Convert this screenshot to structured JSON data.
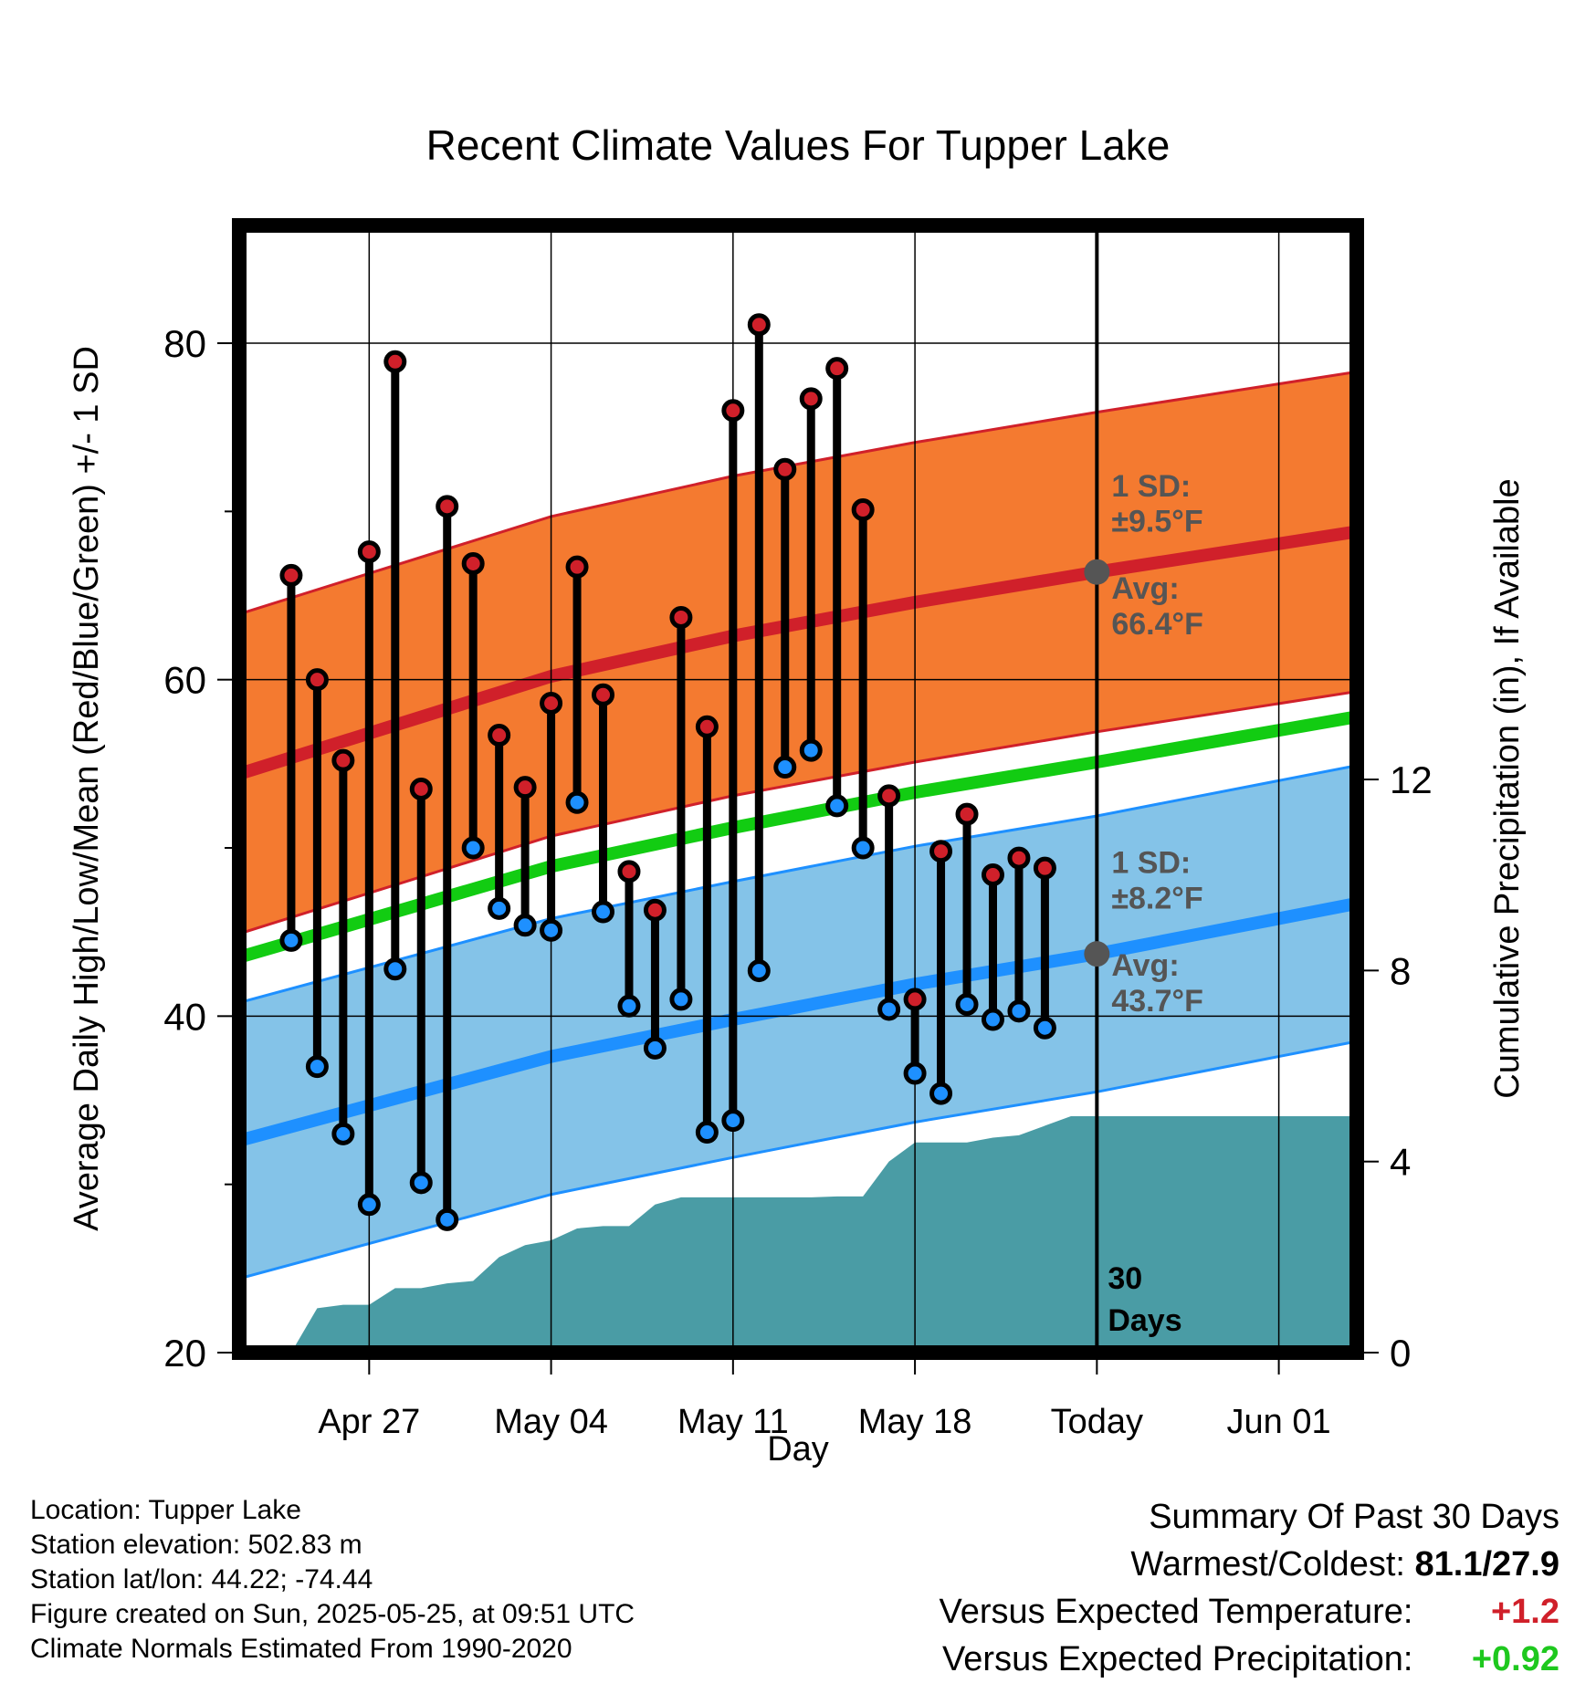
{
  "chart_data": {
    "type": "line",
    "title": "Recent Climate Values For Tupper Lake",
    "xlabel": "Day",
    "ylabel": "Average Daily High/Low/Mean (Red/Blue/Green) +/- 1 SD",
    "y2label": "Cumulative Precipitation (in), If Available",
    "ylim": [
      20,
      87
    ],
    "y2lim": [
      0,
      23.6
    ],
    "yticks": [
      "20",
      "40",
      "60",
      "80"
    ],
    "y2ticks": [
      "0",
      "4",
      "8",
      "12"
    ],
    "xlim": [
      "2025-04-22",
      "2025-06-04"
    ],
    "xticks": [
      {
        "date": "2025-04-27",
        "label": "Apr 27"
      },
      {
        "date": "2025-05-04",
        "label": "May 04"
      },
      {
        "date": "2025-05-11",
        "label": "May 11"
      },
      {
        "date": "2025-05-18",
        "label": "May 18"
      },
      {
        "date": "2025-05-25",
        "label": "Today"
      },
      {
        "date": "2025-06-01",
        "label": "Jun 01"
      }
    ],
    "today": "2025-05-25",
    "today_label": "30 Days",
    "normals": {
      "dates": [
        "2025-04-22",
        "2025-05-04",
        "2025-05-11",
        "2025-05-18",
        "2025-05-25",
        "2025-06-04"
      ],
      "avg_high": [
        54.4,
        60.2,
        62.6,
        64.6,
        66.4,
        68.8
      ],
      "avg_low": [
        32.6,
        37.6,
        39.8,
        41.9,
        43.7,
        46.7
      ],
      "avg_mean": [
        43.5,
        48.9,
        51.2,
        53.3,
        55.1,
        57.8
      ],
      "high_sd": 9.5,
      "low_sd": 8.2
    },
    "series": [
      {
        "name": "High",
        "color": "#d0202a",
        "x": [
          "2025-04-24",
          "2025-04-25",
          "2025-04-26",
          "2025-04-27",
          "2025-04-28",
          "2025-04-29",
          "2025-04-30",
          "2025-05-01",
          "2025-05-02",
          "2025-05-03",
          "2025-05-04",
          "2025-05-05",
          "2025-05-06",
          "2025-05-07",
          "2025-05-08",
          "2025-05-09",
          "2025-05-10",
          "2025-05-11",
          "2025-05-12",
          "2025-05-13",
          "2025-05-14",
          "2025-05-15",
          "2025-05-16",
          "2025-05-17",
          "2025-05-18",
          "2025-05-19",
          "2025-05-20",
          "2025-05-21",
          "2025-05-22",
          "2025-05-23",
          "2025-05-24"
        ],
        "values": [
          66.2,
          60.0,
          55.2,
          67.6,
          78.9,
          53.5,
          70.3,
          66.9,
          56.7,
          53.6,
          58.6,
          66.7,
          59.1,
          48.6,
          46.3,
          63.7,
          57.2,
          76.0,
          81.1,
          72.5,
          76.7,
          78.5,
          70.1,
          53.1,
          41.0,
          49.8,
          52.0,
          48.4,
          49.4,
          48.8,
          null
        ]
      },
      {
        "name": "Low",
        "color": "#1e90ff",
        "x": [
          "2025-04-24",
          "2025-04-25",
          "2025-04-26",
          "2025-04-27",
          "2025-04-28",
          "2025-04-29",
          "2025-04-30",
          "2025-05-01",
          "2025-05-02",
          "2025-05-03",
          "2025-05-04",
          "2025-05-05",
          "2025-05-06",
          "2025-05-07",
          "2025-05-08",
          "2025-05-09",
          "2025-05-10",
          "2025-05-11",
          "2025-05-12",
          "2025-05-13",
          "2025-05-14",
          "2025-05-15",
          "2025-05-16",
          "2025-05-17",
          "2025-05-18",
          "2025-05-19",
          "2025-05-20",
          "2025-05-21",
          "2025-05-22",
          "2025-05-23",
          "2025-05-24"
        ],
        "values": [
          44.5,
          37.0,
          33.0,
          28.8,
          42.8,
          30.1,
          27.9,
          50.0,
          46.4,
          45.4,
          45.1,
          52.7,
          46.2,
          40.6,
          38.1,
          41.0,
          33.1,
          33.8,
          42.7,
          54.8,
          55.8,
          52.5,
          50.0,
          40.4,
          36.6,
          35.4,
          40.7,
          39.8,
          40.3,
          39.3,
          null
        ]
      },
      {
        "name": "Precipitation",
        "color": "#4a9ca5",
        "x": [
          "2025-04-24",
          "2025-04-25",
          "2025-04-26",
          "2025-04-27",
          "2025-04-28",
          "2025-04-29",
          "2025-04-30",
          "2025-05-01",
          "2025-05-02",
          "2025-05-03",
          "2025-05-04",
          "2025-05-05",
          "2025-05-06",
          "2025-05-07",
          "2025-05-08",
          "2025-05-09",
          "2025-05-10",
          "2025-05-11",
          "2025-05-12",
          "2025-05-13",
          "2025-05-14",
          "2025-05-15",
          "2025-05-16",
          "2025-05-17",
          "2025-05-18",
          "2025-05-19",
          "2025-05-20",
          "2025-05-21",
          "2025-05-22",
          "2025-05-23",
          "2025-05-24",
          "2025-05-25",
          "2025-06-04"
        ],
        "values": [
          0.0,
          0.93,
          1.0,
          1.0,
          1.35,
          1.35,
          1.45,
          1.5,
          2.0,
          2.25,
          2.35,
          2.6,
          2.65,
          2.65,
          3.1,
          3.25,
          3.25,
          3.25,
          3.25,
          3.25,
          3.25,
          3.27,
          3.27,
          4.0,
          4.4,
          4.4,
          4.4,
          4.5,
          4.55,
          4.75,
          4.95,
          4.95,
          4.95
        ]
      }
    ],
    "annotations": {
      "high_sd_label": "1 SD:",
      "high_sd_value": "±9.5°F",
      "high_avg_label": "Avg:",
      "high_avg_value": "66.4°F",
      "low_sd_label": "1 SD:",
      "low_sd_value": "±8.2°F",
      "low_avg_label": "Avg:",
      "low_avg_value": "43.7°F",
      "days_line1": "30",
      "days_line2": "Days"
    },
    "colors": {
      "high_band": "#f47a30",
      "high_line": "#d0202a",
      "low_band": "#84c3e8",
      "low_line": "#1e90ff",
      "mean_line": "#12cc12",
      "precip": "#4a9ca5",
      "marker_high": "#d0202a",
      "marker_low": "#1e90ff",
      "annotation": "#555555"
    }
  },
  "footer": {
    "location": "Location: Tupper Lake",
    "elevation": "Station elevation: 502.83 m",
    "latlon": "Station lat/lon: 44.22; -74.44",
    "created": "Figure created on Sun, 2025-05-25, at 09:51 UTC",
    "normals": "Climate Normals Estimated From 1990-2020"
  },
  "summary": {
    "title": "Summary Of Past 30 Days",
    "warmest_coldest_label": "Warmest/Coldest:",
    "warmest_coldest_value": "81.1/27.9",
    "temp_label": "Versus Expected Temperature:",
    "temp_value": "+1.2",
    "precip_label": "Versus Expected Precipitation:",
    "precip_value": "+0.92"
  }
}
